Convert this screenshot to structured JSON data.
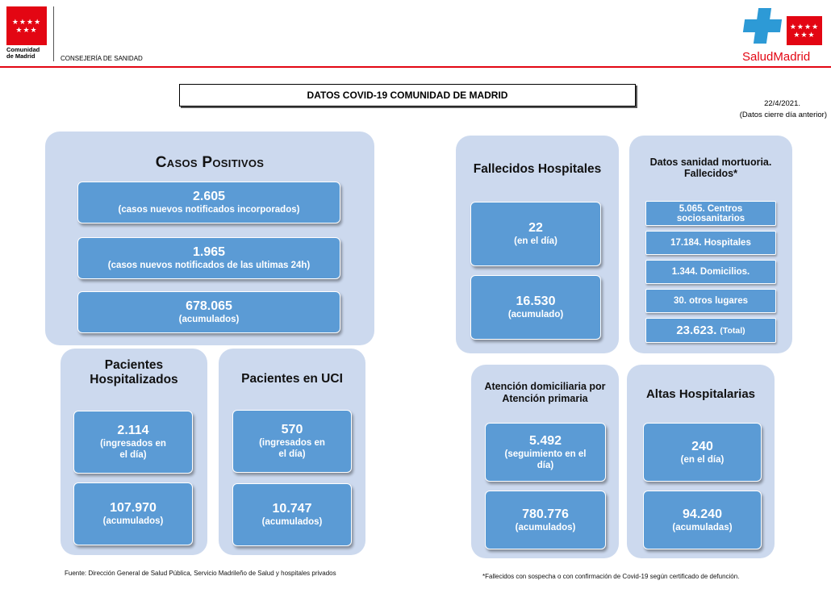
{
  "header": {
    "logo_stars": "★★★★ ★★★",
    "logo_text_line1": "Comunidad",
    "logo_text_line2": "de Madrid",
    "consejeria": "CONSEJERÍA DE SANIDAD",
    "salud_logo_text": "SaludMadrid"
  },
  "title": "DATOS COVID-19 COMUNIDAD DE MADRID",
  "date": "22/4/2021.",
  "date_note": "(Datos cierre día anterior)",
  "casos": {
    "title": "Casos Positivos",
    "items": [
      {
        "value": "2.605",
        "label": "(casos nuevos notificados incorporados)"
      },
      {
        "value": "1.965",
        "label": "(casos nuevos notificados de las ultimas 24h)"
      },
      {
        "value": "678.065",
        "label": "(acumulados)"
      }
    ]
  },
  "hospitalizados": {
    "title_line1": "Pacientes",
    "title_line2": "Hospitalizados",
    "day_value": "2.114",
    "day_label_line1": "(ingresados en",
    "day_label_line2": "el día)",
    "acc_value": "107.970",
    "acc_label": "(acumulados)"
  },
  "uci": {
    "title": "Pacientes en UCI",
    "day_value": "570",
    "day_label_line1": "(ingresados en",
    "day_label_line2": "el día)",
    "acc_value": "10.747",
    "acc_label": "(acumulados)"
  },
  "fallecidos": {
    "title": "Fallecidos Hospitales",
    "day_value": "22",
    "day_label": "(en el día)",
    "acc_value": "16.530",
    "acc_label": "(acumulado)"
  },
  "mortuoria": {
    "title_line1": "Datos sanidad mortuoria.",
    "title_line2": "Fallecidos*",
    "centros_line1": "5.065. Centros",
    "centros_line2": "sociosanitarios",
    "hospitales": "17.184. Hospitales",
    "domicilios": "1.344. Domicilios.",
    "otros": "30. otros lugares",
    "total_value": "23.623.",
    "total_label": "(Total)"
  },
  "domiciliaria": {
    "title_line1": "Atención domiciliaria por",
    "title_line2": "Atención primaria",
    "day_value": "5.492",
    "day_label_line1": "(seguimiento en el",
    "day_label_line2": "día)",
    "acc_value": "780.776",
    "acc_label": "(acumulados)"
  },
  "altas": {
    "title": "Altas Hospitalarias",
    "day_value": "240",
    "day_label": "(en el día)",
    "acc_value": "94.240",
    "acc_label": "(acumuladas)"
  },
  "footer_left": "Fuente: Dirección General de Salud Pública, Servicio Madrileño de Salud y hospitales privados",
  "footer_right": "*Fallecidos con sospecha o con confirmación de Covid-19 según certificado de defunción."
}
